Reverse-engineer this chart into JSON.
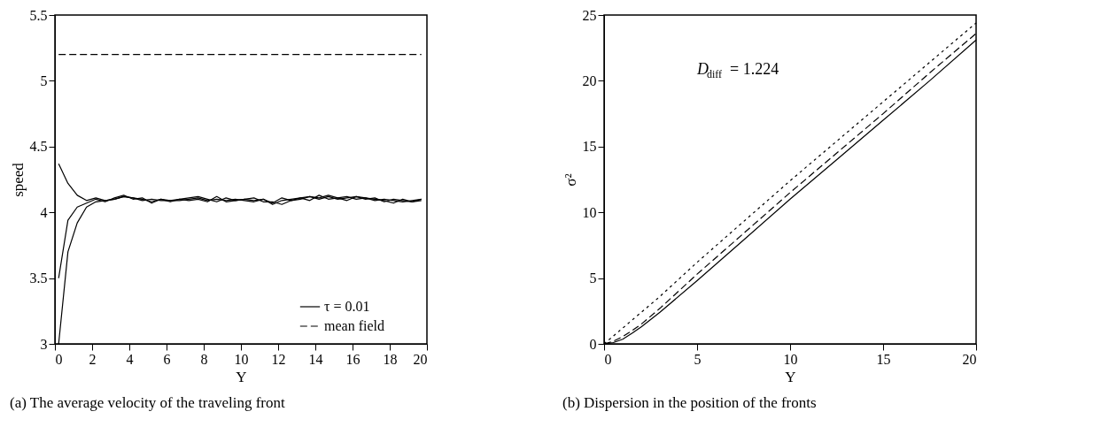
{
  "chart_data": [
    {
      "type": "line",
      "title": "(a) The average velocity of the traveling front",
      "xlabel": "Y",
      "ylabel": "speed",
      "xlim": [
        0,
        20
      ],
      "ylim": [
        3,
        5.5
      ],
      "xticks": [
        0,
        2,
        4,
        6,
        8,
        10,
        12,
        14,
        16,
        18,
        20
      ],
      "yticks": [
        3,
        3.5,
        4,
        4.5,
        5,
        5.5
      ],
      "legend": "bottom right",
      "x": [
        0.2,
        0.7,
        1.2,
        1.7,
        2.2,
        2.7,
        3.2,
        3.7,
        4.2,
        4.7,
        5.2,
        5.7,
        6.2,
        6.7,
        7.2,
        7.7,
        8.2,
        8.7,
        9.2,
        9.7,
        10.2,
        10.7,
        11.2,
        11.7,
        12.2,
        12.7,
        13.2,
        13.7,
        14.2,
        14.7,
        15.2,
        15.7,
        16.2,
        16.7,
        17.2,
        17.7,
        18.2,
        18.7,
        19.2,
        19.7
      ],
      "series": [
        {
          "name": "τ = 0.01",
          "color": "#000000",
          "line_style": "solid",
          "values": [
            4.37,
            4.22,
            4.13,
            4.09,
            4.11,
            4.09,
            4.1,
            4.12,
            4.11,
            4.1,
            4.08,
            4.1,
            4.09,
            4.09,
            4.1,
            4.11,
            4.09,
            4.1,
            4.09,
            4.1,
            4.09,
            4.08,
            4.1,
            4.06,
            4.09,
            4.1,
            4.11,
            4.12,
            4.1,
            4.12,
            4.1,
            4.11,
            4.12,
            4.1,
            4.11,
            4.08,
            4.1,
            4.09,
            4.08,
            4.1
          ]
        },
        {
          "color": "#000000",
          "line_style": "solid",
          "values": [
            3.5,
            3.94,
            4.04,
            4.07,
            4.1,
            4.08,
            4.11,
            4.13,
            4.1,
            4.11,
            4.07,
            4.1,
            4.08,
            4.1,
            4.09,
            4.1,
            4.08,
            4.12,
            4.08,
            4.09,
            4.1,
            4.11,
            4.08,
            4.08,
            4.06,
            4.09,
            4.11,
            4.09,
            4.13,
            4.1,
            4.11,
            4.09,
            4.12,
            4.11,
            4.1,
            4.09,
            4.07,
            4.1,
            4.08,
            4.09
          ]
        },
        {
          "color": "#000000",
          "line_style": "solid",
          "values": [
            3.0,
            3.7,
            3.92,
            4.04,
            4.08,
            4.09,
            4.1,
            4.12,
            4.11,
            4.09,
            4.1,
            4.09,
            4.09,
            4.1,
            4.11,
            4.12,
            4.1,
            4.08,
            4.11,
            4.09,
            4.1,
            4.09,
            4.1,
            4.07,
            4.11,
            4.09,
            4.1,
            4.12,
            4.11,
            4.13,
            4.11,
            4.12,
            4.1,
            4.11,
            4.09,
            4.1,
            4.09,
            4.08,
            4.09,
            4.1
          ]
        },
        {
          "name": "mean field",
          "color": "#000000",
          "line_style": "dashed",
          "x": [
            0.2,
            19.7
          ],
          "values": [
            5.2,
            5.2
          ]
        }
      ]
    },
    {
      "type": "line",
      "title": "(b) Dispersion in the position of the fronts",
      "xlabel": "Y",
      "ylabel": "σ²",
      "xlim": [
        0,
        20
      ],
      "ylim": [
        0,
        25
      ],
      "xticks": [
        0,
        5,
        10,
        15,
        20
      ],
      "yticks": [
        0,
        5,
        10,
        15,
        20,
        25
      ],
      "annotations": [
        "D$_{diff}$ = 1.224"
      ],
      "x": [
        0,
        0.5,
        1,
        1.5,
        2,
        3,
        5,
        7.5,
        10,
        12.5,
        15,
        17.5,
        20
      ],
      "series": [
        {
          "color": "#000000",
          "line_style": "solid",
          "values": [
            0,
            0.1,
            0.35,
            0.8,
            1.3,
            2.4,
            4.8,
            7.9,
            11.0,
            14.0,
            17.0,
            20.0,
            23.1
          ]
        },
        {
          "color": "#000000",
          "line_style": "dashed",
          "values": [
            0,
            0.2,
            0.55,
            1.0,
            1.5,
            2.7,
            5.3,
            8.4,
            11.5,
            14.5,
            17.5,
            20.6,
            23.6
          ]
        },
        {
          "color": "#000000",
          "line_style": "dotted",
          "values": [
            0,
            0.6,
            1.2,
            1.8,
            2.4,
            3.6,
            6.2,
            9.3,
            12.4,
            15.4,
            18.4,
            21.4,
            24.4
          ]
        }
      ]
    }
  ]
}
